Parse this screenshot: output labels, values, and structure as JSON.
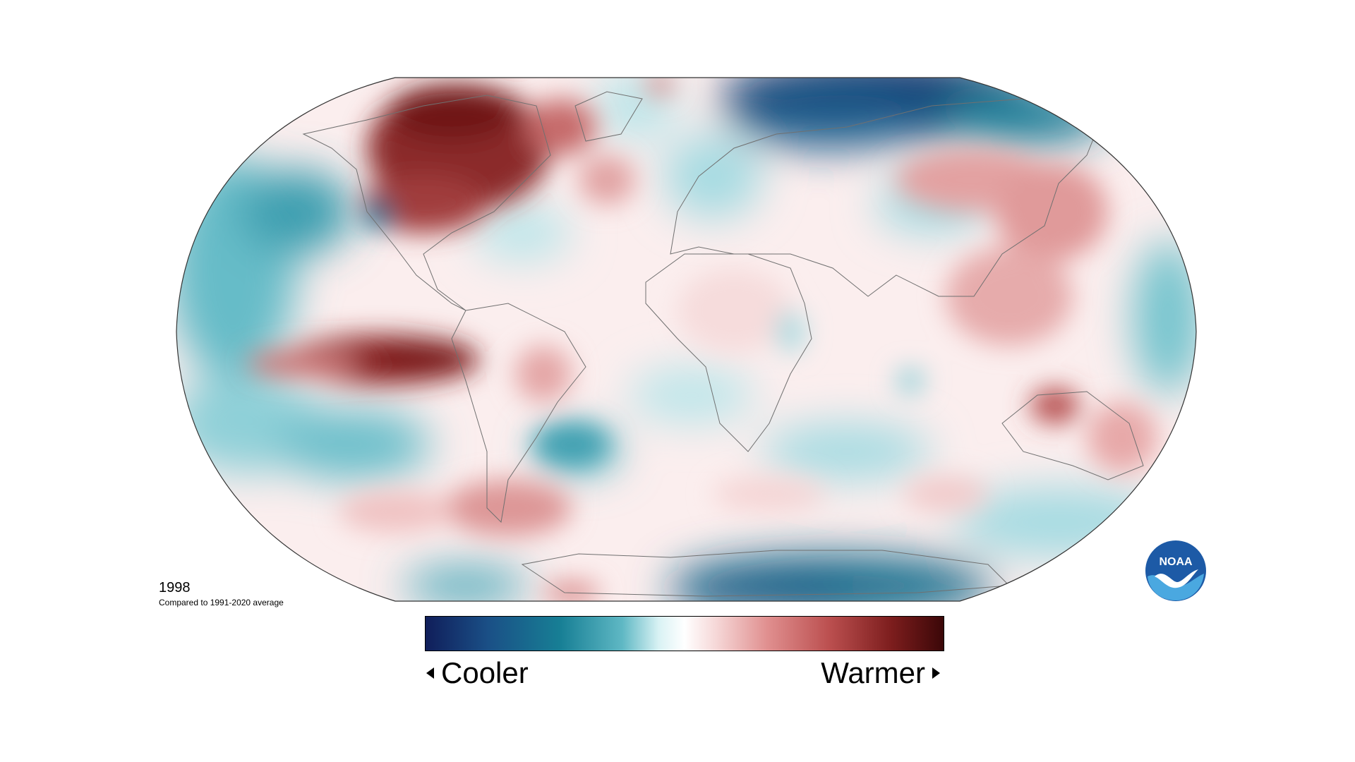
{
  "map": {
    "year": "1998",
    "comparison": "Compared to 1991-2020 average",
    "projection": "robinson"
  },
  "legend": {
    "cooler_label": "Cooler",
    "warmer_label": "Warmer",
    "gradient_colors": [
      "#101e5a",
      "#1a4f86",
      "#177f95",
      "#5fb8c4",
      "#d9f2f4",
      "#ffffff",
      "#f6d8d8",
      "#e08f8f",
      "#bb4f4f",
      "#7c1d1d",
      "#3b0708"
    ]
  },
  "logo": {
    "text": "NOAA",
    "colors": {
      "sky": "#1d5aa6",
      "water": "#4aa8e0",
      "bird": "#ffffff"
    }
  },
  "colors": {
    "warm_strong": "#7f1f1f",
    "warm_medium": "#c96a6a",
    "warm_light": "#f0c5c5",
    "cool_strong": "#0f2c64",
    "cool_medium": "#24899a",
    "cool_light": "#a6dbe2",
    "neutral": "#fdf6f6"
  }
}
